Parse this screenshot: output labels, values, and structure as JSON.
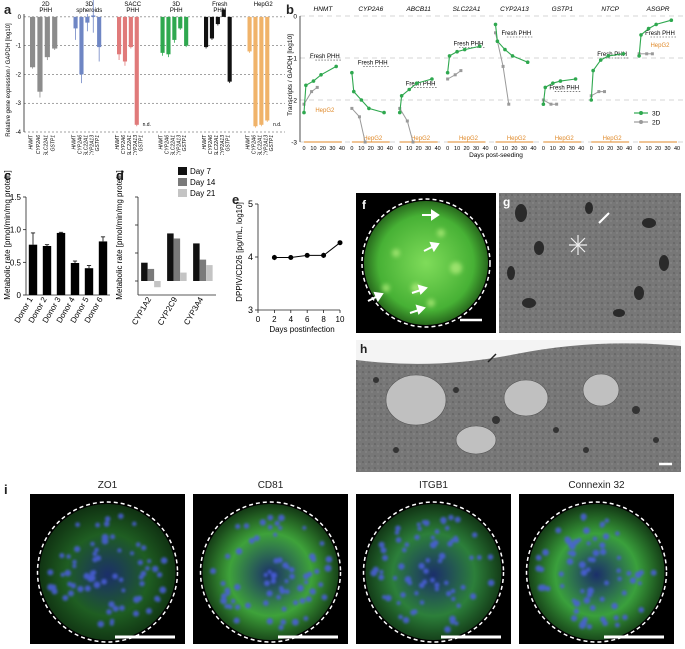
{
  "panels": {
    "a": {
      "letter": "a",
      "ylabel": "Relative gene expression / GAPDH [log10]",
      "groups": [
        {
          "name": "2D PHH",
          "color": "#8c8c8c",
          "genes": [
            "HNMT",
            "CYP2A6",
            "SLC22A1",
            "GSTP1"
          ],
          "values": [
            -1.75,
            -2.6,
            -1.4,
            -1.1
          ],
          "errors": [
            0.05,
            0.2,
            0.1,
            0.05
          ]
        },
        {
          "name": "3D spheroids",
          "color": "#6f86c4",
          "genes": [
            "HNMT",
            "CYP2A6",
            "SLC22A1",
            "CYP2A13",
            "GSTP1"
          ],
          "values": [
            -0.4,
            -2.0,
            -0.2,
            0.05,
            -1.05
          ],
          "errors": [
            0.4,
            0.3,
            0.3,
            0.6,
            0.5
          ]
        },
        {
          "name": "SACC PHH",
          "color": "#e07a7a",
          "genes": [
            "HNMT",
            "CYP2A6",
            "SLC22A1",
            "CYP2A13",
            "GSTP1"
          ],
          "values": [
            -1.3,
            -1.55,
            -1.05,
            -3.75,
            null
          ],
          "errors": [
            0.2,
            0.15,
            0.05,
            0.05,
            0
          ],
          "nd": "n.d."
        },
        {
          "name": "3D PHH",
          "color": "#2fa84f",
          "genes": [
            "HNMT",
            "CYP2A6",
            "SLC22A1",
            "CYP2A13",
            "GSTP1"
          ],
          "values": [
            -1.25,
            -1.3,
            -0.8,
            -0.4,
            -1.0
          ],
          "errors": [
            0.1,
            0.1,
            0.1,
            0.05,
            0.05
          ]
        },
        {
          "name": "Fresh PHH",
          "color": "#111111",
          "genes": [
            "HNMT",
            "CYP2A6",
            "SLC22A1",
            "CYP2A13",
            "GSTP1"
          ],
          "values": [
            -1.05,
            -0.75,
            -0.25,
            0.25,
            -2.25
          ],
          "errors": [
            0.05,
            0.05,
            0.05,
            0.05,
            0.05
          ]
        },
        {
          "name": "HepG2",
          "color": "#f0b36a",
          "genes": [
            "HNMT",
            "CYP2A6",
            "SLC22A1",
            "CYP2A13",
            "GSTP1"
          ],
          "values": [
            -1.2,
            -3.8,
            -3.75,
            -3.6,
            null
          ],
          "errors": [
            0.05,
            0.05,
            0.05,
            0.05,
            0
          ],
          "nd": "n.d."
        }
      ],
      "yticks": [
        "0",
        "-1",
        "-2",
        "-3",
        "-4"
      ],
      "nd_label": "n.d."
    },
    "b": {
      "letter": "b",
      "ylabel": "Transcripts / GAPDH [log10]",
      "xlabel": "Days post-seeding",
      "genes": [
        "HNMT",
        "CYP2A6",
        "ABCB11",
        "SLC22A1",
        "CYP2A13",
        "GSTP1",
        "NTCP",
        "ASGPR"
      ],
      "xticks": [
        "0",
        "10",
        "20",
        "30",
        "40"
      ],
      "yticks": [
        "0",
        "-1",
        "-2",
        "-3"
      ],
      "fresh_label": "Fresh PHH",
      "hepg2_label": "HepG2",
      "legend": [
        {
          "name": "3D",
          "color": "#2fa84f"
        },
        {
          "name": "2D",
          "color": "#9a9a9a"
        }
      ]
    },
    "c": {
      "letter": "c",
      "ylabel": "Metabolic rate [pmol/min/mg protein]",
      "yticks": [
        "0",
        "0.5",
        "1.0",
        "1.5"
      ],
      "chart_data": {
        "type": "bar",
        "categories": [
          "Donor 1",
          "Donor 2",
          "Donor 3",
          "Donor 4",
          "Donor 5",
          "Donor 6"
        ],
        "values": [
          0.77,
          0.75,
          0.95,
          0.49,
          0.41,
          0.82
        ],
        "errors": [
          0.18,
          0.02,
          0.01,
          0.03,
          0.04,
          0.07
        ],
        "ylim": [
          0,
          1.5
        ]
      }
    },
    "d": {
      "letter": "d",
      "ylabel": "Metabolic rate [pmol/min/mg protein]",
      "yticks": [
        "10^0",
        "10^1",
        "10^2",
        "10^3"
      ],
      "chart_data": {
        "type": "bar",
        "categories": [
          "CYP1A2",
          "CYP2C9",
          "CYP3A4"
        ],
        "series": [
          {
            "name": "Day 7",
            "color": "#111111",
            "values": [
              4.5,
              50,
              22
            ]
          },
          {
            "name": "Day 14",
            "color": "#7a7a7a",
            "values": [
              2.7,
              33,
              5.8
            ]
          },
          {
            "name": "Day 21",
            "color": "#c4c4c4",
            "values": [
              0.6,
              2.0,
              3.7
            ]
          }
        ],
        "yscale": "log"
      }
    },
    "e": {
      "letter": "e",
      "ylabel": "DPPIV/CD26 [pg/mL, log10]",
      "xlabel": "Days postinfection",
      "xticks": [
        "0",
        "2",
        "4",
        "6",
        "8",
        "10"
      ],
      "yticks": [
        "3",
        "4",
        "5"
      ],
      "chart_data": {
        "type": "line",
        "x": [
          2,
          4,
          6,
          8,
          10
        ],
        "y": [
          3.99,
          3.99,
          4.03,
          4.03,
          4.27
        ],
        "errors": [
          0.05,
          0.02,
          0.04,
          0.05,
          0.03
        ],
        "xlim": [
          0,
          10
        ],
        "ylim": [
          3,
          5
        ]
      }
    },
    "f": {
      "letter": "f"
    },
    "g": {
      "letter": "g"
    },
    "h": {
      "letter": "h"
    },
    "i": {
      "letter": "i",
      "stains": [
        "ZO1",
        "CD81",
        "ITGB1",
        "Connexin 32"
      ]
    }
  }
}
